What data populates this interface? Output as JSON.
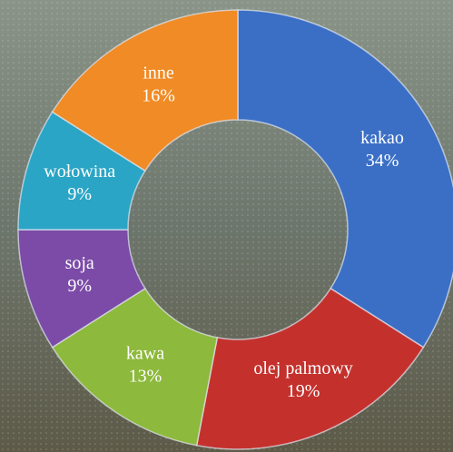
{
  "chart_data": {
    "type": "donut",
    "categories": [
      "kakao",
      "olej palmowy",
      "kawa",
      "soja",
      "wołowina",
      "inne"
    ],
    "values": [
      34,
      19,
      13,
      9,
      9,
      16
    ],
    "value_labels": [
      "34%",
      "19%",
      "13%",
      "9%",
      "9%",
      "16%"
    ],
    "colors": [
      "#3b6fc6",
      "#c4312d",
      "#8db93c",
      "#7b4ba7",
      "#2ba5c5",
      "#f08b25"
    ]
  }
}
